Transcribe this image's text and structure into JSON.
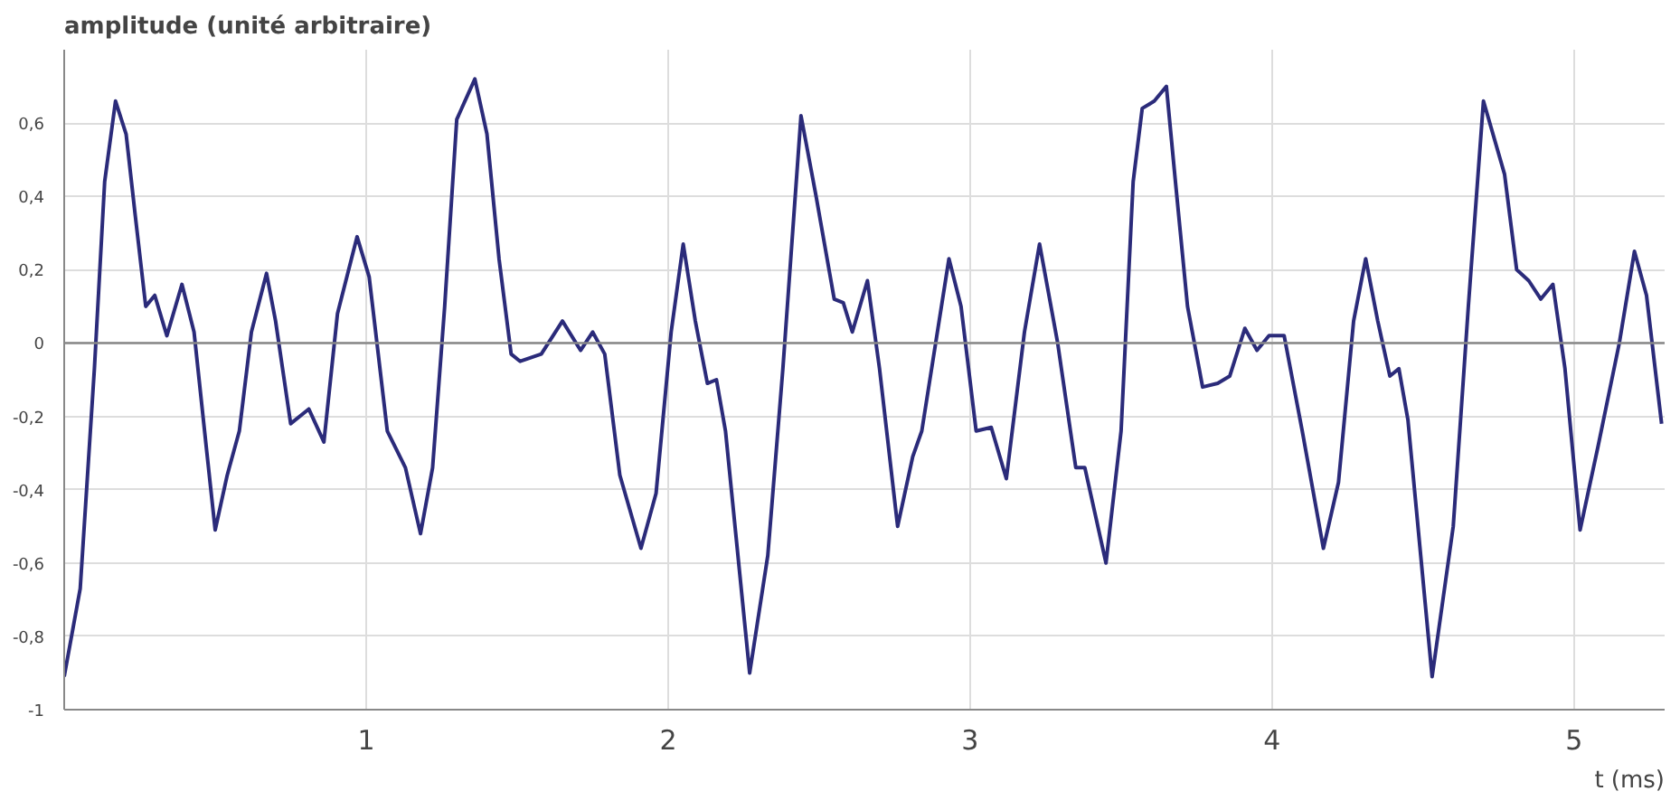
{
  "chart_data": {
    "type": "line",
    "xlabel": "t (ms)",
    "ylabel": "amplitude (unité arbitraire)",
    "xlim": [
      0,
      5.3
    ],
    "ylim": [
      -1,
      0.8
    ],
    "xticks": [
      1,
      2,
      3,
      4,
      5
    ],
    "yticks": [
      {
        "value": -1,
        "label": "-1"
      },
      {
        "value": -0.8,
        "label": "-0,8"
      },
      {
        "value": -0.6,
        "label": "-0,6"
      },
      {
        "value": -0.4,
        "label": "-0,4"
      },
      {
        "value": -0.2,
        "label": "-0,2"
      },
      {
        "value": 0,
        "label": "0"
      },
      {
        "value": 0.2,
        "label": "0,2"
      },
      {
        "value": 0.4,
        "label": "0,4"
      },
      {
        "value": 0.6,
        "label": "0,6"
      }
    ],
    "grid": true,
    "line_style": "solid",
    "marker": "none",
    "ref_lines": [
      {
        "axis": "y",
        "value": 0,
        "color": "#888888"
      }
    ],
    "series": [
      {
        "color": "#2b2b7a",
        "x": [
          0,
          0.053,
          0.1,
          0.134,
          0.17,
          0.205,
          0.235,
          0.27,
          0.3,
          0.34,
          0.39,
          0.43,
          0.47,
          0.5,
          0.54,
          0.58,
          0.62,
          0.67,
          0.7,
          0.75,
          0.81,
          0.86,
          0.905,
          0.97,
          1.01,
          1.07,
          1.13,
          1.18,
          1.22,
          1.26,
          1.3,
          1.36,
          1.4,
          1.44,
          1.48,
          1.51,
          1.58,
          1.65,
          1.71,
          1.75,
          1.79,
          1.84,
          1.91,
          1.96,
          2.01,
          2.05,
          2.09,
          2.13,
          2.16,
          2.19,
          2.27,
          2.33,
          2.38,
          2.44,
          2.49,
          2.55,
          2.58,
          2.61,
          2.66,
          2.7,
          2.76,
          2.81,
          2.84,
          2.93,
          2.97,
          3.02,
          3.07,
          3.12,
          3.18,
          3.23,
          3.29,
          3.35,
          3.38,
          3.45,
          3.5,
          3.54,
          3.57,
          3.61,
          3.65,
          3.68,
          3.72,
          3.77,
          3.82,
          3.86,
          3.91,
          3.95,
          3.99,
          4.04,
          4.1,
          4.17,
          4.22,
          4.27,
          4.31,
          4.35,
          4.39,
          4.42,
          4.45,
          4.53,
          4.6,
          4.65,
          4.7,
          4.77,
          4.81,
          4.85,
          4.89,
          4.93,
          4.97,
          5.02,
          5.08,
          5.15,
          5.2,
          5.24,
          5.29
        ],
        "values": [
          -0.91,
          -0.67,
          -0.07,
          0.44,
          0.66,
          0.57,
          0.35,
          0.1,
          0.13,
          0.02,
          0.16,
          0.03,
          -0.28,
          -0.51,
          -0.36,
          -0.24,
          0.03,
          0.19,
          0.06,
          -0.22,
          -0.18,
          -0.27,
          0.08,
          0.29,
          0.18,
          -0.24,
          -0.34,
          -0.52,
          -0.34,
          0.1,
          0.61,
          0.72,
          0.57,
          0.23,
          -0.03,
          -0.05,
          -0.03,
          0.06,
          -0.02,
          0.03,
          -0.03,
          -0.36,
          -0.56,
          -0.41,
          0.03,
          0.27,
          0.06,
          -0.11,
          -0.1,
          -0.24,
          -0.9,
          -0.58,
          -0.07,
          0.62,
          0.4,
          0.12,
          0.11,
          0.03,
          0.17,
          -0.07,
          -0.5,
          -0.31,
          -0.24,
          0.23,
          0.1,
          -0.24,
          -0.23,
          -0.37,
          0.03,
          0.27,
          0.0,
          -0.34,
          -0.34,
          -0.6,
          -0.24,
          0.44,
          0.64,
          0.66,
          0.7,
          0.44,
          0.1,
          -0.12,
          -0.11,
          -0.09,
          0.04,
          -0.02,
          0.02,
          0.02,
          -0.24,
          -0.56,
          -0.38,
          0.06,
          0.23,
          0.06,
          -0.09,
          -0.07,
          -0.21,
          -0.91,
          -0.5,
          0.1,
          0.66,
          0.46,
          0.2,
          0.17,
          0.12,
          0.16,
          -0.07,
          -0.51,
          -0.28,
          0.0,
          0.25,
          0.13,
          -0.22
        ]
      }
    ]
  }
}
